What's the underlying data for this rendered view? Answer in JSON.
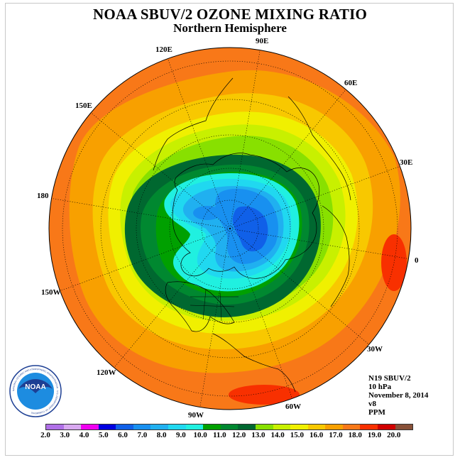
{
  "header": {
    "title": "NOAA SBUV/2 OZONE MIXING RATIO",
    "subtitle": "Northern Hemisphere"
  },
  "map": {
    "projection": "north-polar-stereographic",
    "longitude_labels": [
      "90E",
      "60E",
      "30E",
      "0",
      "30W",
      "60W",
      "90W",
      "120W",
      "150W",
      "180",
      "150E",
      "120E"
    ]
  },
  "info": {
    "line1": "N19 SBUV/2",
    "line2": "10 hPa",
    "line3": "November 8, 2014",
    "line4": "v8",
    "line5": "PPM"
  },
  "legend": {
    "colors": [
      "#b070e8",
      "#d8a8f0",
      "#f000f0",
      "#0000e0",
      "#1060e8",
      "#1890f0",
      "#20b0f0",
      "#20d8f0",
      "#20f0e0",
      "#00a000",
      "#008830",
      "#006830",
      "#88e000",
      "#c8f000",
      "#f0f000",
      "#f8c800",
      "#f8a000",
      "#f87818",
      "#f83000",
      "#d00000",
      "#885038"
    ],
    "ticks": [
      "2.0",
      "3.0",
      "4.0",
      "5.0",
      "6.0",
      "7.0",
      "8.0",
      "9.0",
      "10.0",
      "11.0",
      "12.0",
      "13.0",
      "14.0",
      "15.0",
      "16.0",
      "17.0",
      "18.0",
      "19.0",
      "20.0"
    ]
  },
  "logo": {
    "text": "NOAA",
    "ring_text": "NATIONAL OCEANIC AND ATMOSPHERIC ADMINISTRATION · U.S. DEPARTMENT OF COMMERCE"
  }
}
